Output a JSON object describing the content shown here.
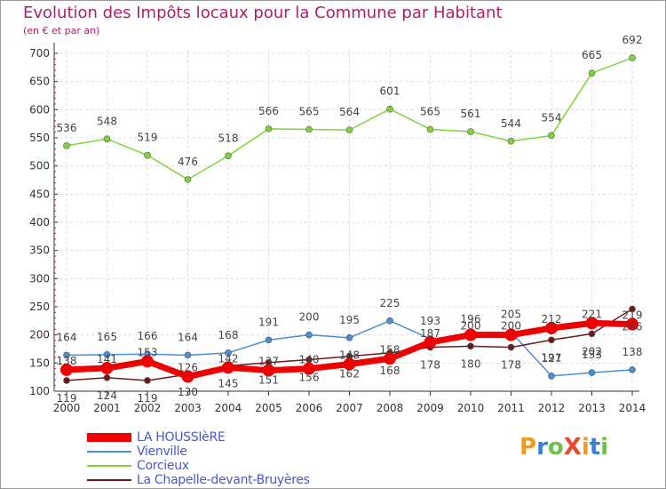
{
  "chart_data": {
    "type": "line",
    "title": "Evolution des Impôts locaux pour la Commune par Habitant",
    "subtitle": "(en € et par an)",
    "x": [
      "2000",
      "2001",
      "2002",
      "2003",
      "2004",
      "2005",
      "2006",
      "2007",
      "2008",
      "2009",
      "2010",
      "2011",
      "2012",
      "2013",
      "2014"
    ],
    "ylim": [
      100,
      700
    ],
    "yticks": [
      100,
      150,
      200,
      250,
      300,
      350,
      400,
      450,
      500,
      550,
      600,
      650,
      700
    ],
    "series": [
      {
        "name": "LA HOUSSIèRE",
        "color": "#ee0000",
        "values": [
          138,
          141,
          153,
          126,
          142,
          137,
          140,
          148,
          158,
          187,
          200,
          200,
          212,
          221,
          219
        ],
        "labels": [
          "138",
          "141",
          "153",
          "126",
          "142",
          "137",
          "140",
          "148",
          "158",
          "187",
          "200",
          "200",
          "212",
          "221",
          "219"
        ]
      },
      {
        "name": "Vienville",
        "color": "#4a8fd4",
        "values": [
          164,
          165,
          166,
          164,
          168,
          191,
          200,
          195,
          225,
          193,
          196,
          205,
          127,
          133,
          138
        ],
        "labels": [
          "164",
          "165",
          "166",
          "164",
          "168",
          "191",
          "200",
          "195",
          "225",
          "193",
          "196",
          "205",
          "127",
          "133",
          "138"
        ]
      },
      {
        "name": "Corcieux",
        "color": "#7fd43a",
        "values": [
          536,
          548,
          519,
          476,
          518,
          566,
          565,
          564,
          601,
          565,
          561,
          544,
          554,
          665,
          692
        ],
        "labels": [
          "536",
          "548",
          "519",
          "476",
          "518",
          "566",
          "565",
          "564",
          "601",
          "565",
          "561",
          "544",
          "554",
          "665",
          "692"
        ]
      },
      {
        "name": "La Chapelle-devant-Bruyères",
        "color": "#6b1a1a",
        "values": [
          119,
          124,
          119,
          130,
          145,
          151,
          156,
          162,
          168,
          178,
          180,
          178,
          191,
          202,
          246
        ],
        "labels": [
          "119",
          "124",
          "119",
          "130",
          "145",
          "151",
          "156",
          "162",
          "168",
          "178",
          "180",
          "178",
          "191",
          "202",
          "246"
        ]
      }
    ]
  },
  "logo": {
    "text": "ProXiti",
    "letters": [
      "P",
      "r",
      "o",
      "X",
      "i",
      "t",
      "i"
    ],
    "colors": [
      "#f39a1e",
      "#3a7fd0",
      "#6cc24a",
      "#e8482c",
      "#f39a1e",
      "#3a7fd0",
      "#6cc24a"
    ]
  }
}
